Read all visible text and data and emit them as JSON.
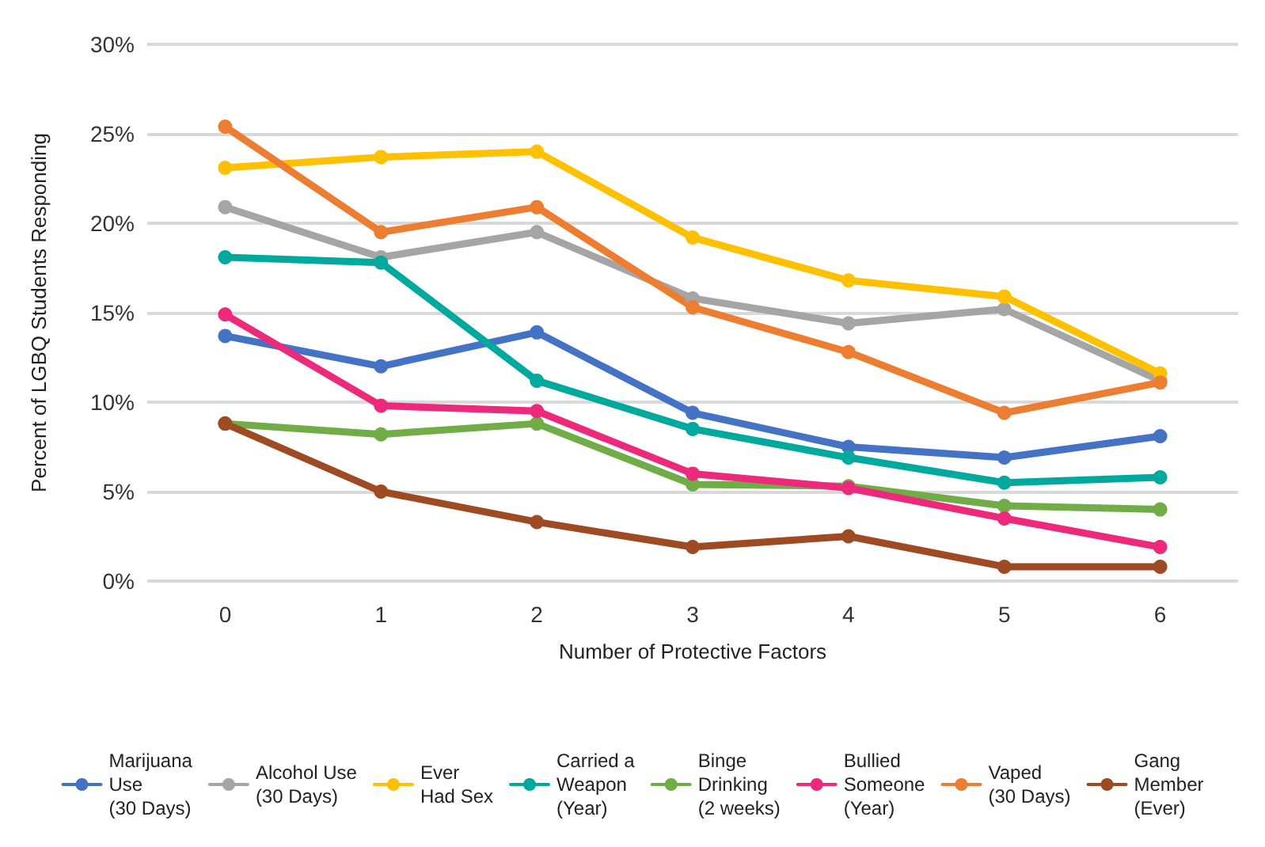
{
  "chart_data": {
    "type": "line",
    "xlabel": "Number of Protective Factors",
    "ylabel": "Percent of LGBQ Students Responding",
    "categories": [
      "0",
      "1",
      "2",
      "3",
      "4",
      "5",
      "6"
    ],
    "series": [
      {
        "name": "Marijuana\nUse\n(30 Days)",
        "color": "#4472c4",
        "values": [
          13.7,
          12.0,
          13.9,
          9.4,
          7.5,
          6.9,
          8.1
        ]
      },
      {
        "name": "Alcohol Use\n(30 Days)",
        "color": "#a5a5a5",
        "values": [
          20.9,
          18.1,
          19.5,
          15.8,
          14.4,
          15.2,
          11.2
        ]
      },
      {
        "name": "Ever\nHad Sex",
        "color": "#ffc000",
        "values": [
          23.1,
          23.7,
          24.0,
          19.2,
          16.8,
          15.9,
          11.6
        ]
      },
      {
        "name": "Carried a\nWeapon\n(Year)",
        "color": "#00a99d",
        "values": [
          18.1,
          17.8,
          11.2,
          8.5,
          6.9,
          5.5,
          5.8
        ]
      },
      {
        "name": "Binge\nDrinking\n(2 weeks)",
        "color": "#70ad47",
        "values": [
          8.8,
          8.2,
          8.8,
          5.4,
          5.3,
          4.2,
          4.0
        ]
      },
      {
        "name": "Bullied\nSomeone\n(Year)",
        "color": "#ec297b",
        "values": [
          14.9,
          9.8,
          9.5,
          6.0,
          5.2,
          3.5,
          1.9
        ]
      },
      {
        "name": "Vaped\n(30 Days)",
        "color": "#ed7d31",
        "values": [
          25.4,
          19.5,
          20.9,
          15.3,
          12.8,
          9.4,
          11.1
        ]
      },
      {
        "name": "Gang\nMember\n(Ever)",
        "color": "#9e4a22",
        "values": [
          8.8,
          5.0,
          3.3,
          1.9,
          2.5,
          0.8,
          0.8
        ]
      }
    ],
    "ylim": [
      0,
      30
    ],
    "yticks": [
      {
        "value": 0,
        "label": "0%"
      },
      {
        "value": 5,
        "label": "5%"
      },
      {
        "value": 10,
        "label": "10%"
      },
      {
        "value": 15,
        "label": "15%"
      },
      {
        "value": 20,
        "label": "20%"
      },
      {
        "value": 25,
        "label": "25%"
      },
      {
        "value": 30,
        "label": "30%"
      }
    ],
    "grid": "y",
    "legend": "bottom",
    "marker": "circle",
    "line_style": "solid"
  }
}
